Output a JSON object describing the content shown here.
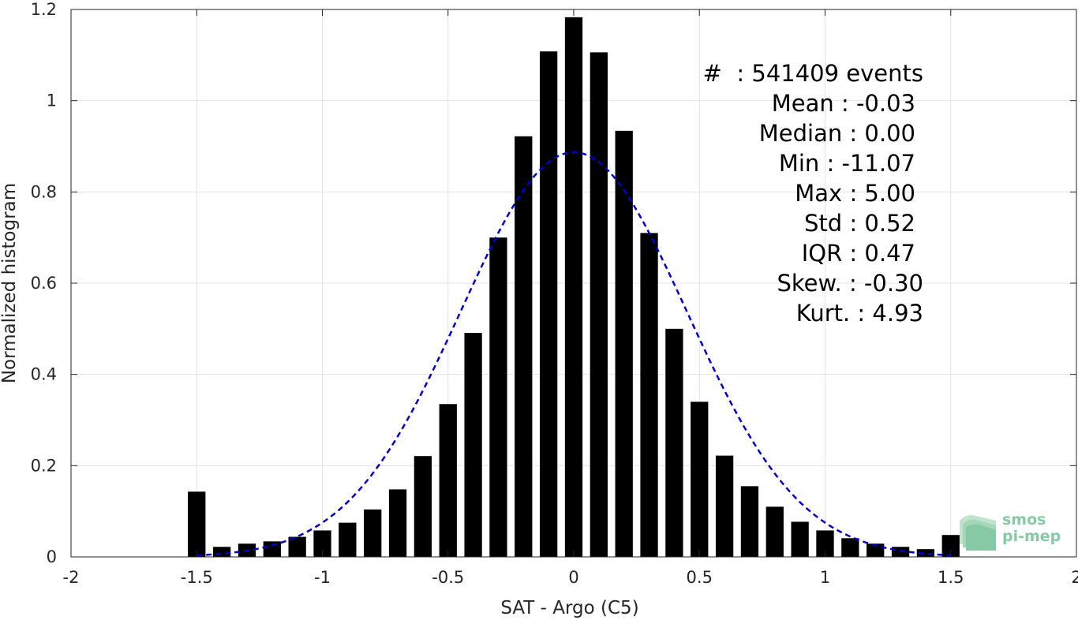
{
  "chart_data": {
    "type": "bar",
    "xlabel": "SAT - Argo (C5)",
    "ylabel": "Normalized histogram",
    "xlim": [
      -2,
      2
    ],
    "ylim": [
      0,
      1.2
    ],
    "grid": true,
    "x_ticks": [
      -2,
      -1.5,
      -1,
      -0.5,
      0,
      0.5,
      1,
      1.5,
      2
    ],
    "x_tick_labels": [
      "-2",
      "-1.5",
      "-1",
      "-0.5",
      "0",
      "0.5",
      "1",
      "1.5",
      "2"
    ],
    "y_ticks": [
      0,
      0.2,
      0.4,
      0.6,
      0.8,
      1,
      1.2
    ],
    "y_tick_labels": [
      "0",
      "0.2",
      "0.4",
      "0.6",
      "0.8",
      "1",
      "1.2"
    ],
    "bar_color": "#000000",
    "bar_width": 0.07,
    "x": [
      -1.5,
      -1.4,
      -1.3,
      -1.2,
      -1.1,
      -1.0,
      -0.9,
      -0.8,
      -0.7,
      -0.6,
      -0.5,
      -0.4,
      -0.3,
      -0.2,
      -0.1,
      0.0,
      0.1,
      0.2,
      0.3,
      0.4,
      0.5,
      0.6,
      0.7,
      0.8,
      0.9,
      1.0,
      1.1,
      1.2,
      1.3,
      1.4,
      1.5
    ],
    "values": [
      0.143,
      0.022,
      0.029,
      0.034,
      0.044,
      0.058,
      0.075,
      0.104,
      0.148,
      0.221,
      0.335,
      0.491,
      0.7,
      0.922,
      1.108,
      1.183,
      1.106,
      0.934,
      0.71,
      0.5,
      0.34,
      0.222,
      0.155,
      0.11,
      0.077,
      0.058,
      0.041,
      0.029,
      0.022,
      0.017,
      0.048
    ],
    "fit_curve": {
      "style": "dashed",
      "color": "#0000cc",
      "x_range": [
        -1.5,
        1.5
      ],
      "mean": 0.0,
      "std": 0.45,
      "peak": 0.887
    },
    "annotations": [
      "#  : 541409 events",
      "Mean : -0.03",
      "Median : 0.00",
      "Min : -11.07",
      "Max : 5.00",
      "Std : 0.52",
      "IQR : 0.47",
      "Skew. : -0.30",
      "Kurt. : 4.93"
    ]
  },
  "logo": {
    "line1": "smos",
    "line2": "pi-mep",
    "color": "#86c9a4"
  }
}
